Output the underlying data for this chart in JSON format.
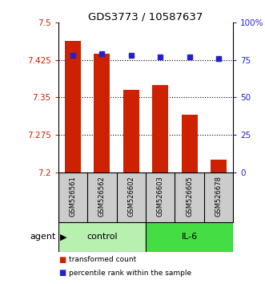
{
  "title": "GDS3773 / 10587637",
  "samples": [
    "GSM526561",
    "GSM526562",
    "GSM526602",
    "GSM526603",
    "GSM526605",
    "GSM526678"
  ],
  "red_values": [
    7.463,
    7.438,
    7.365,
    7.375,
    7.315,
    7.225
  ],
  "blue_values": [
    78,
    79,
    78,
    77,
    77,
    76
  ],
  "ylim_left": [
    7.2,
    7.5
  ],
  "ylim_right": [
    0,
    100
  ],
  "yticks_left": [
    7.2,
    7.275,
    7.35,
    7.425,
    7.5
  ],
  "yticks_right": [
    0,
    25,
    50,
    75,
    100
  ],
  "ytick_labels_left": [
    "7.2",
    "7.275",
    "7.35",
    "7.425",
    "7.5"
  ],
  "ytick_labels_right": [
    "0",
    "25",
    "50",
    "75",
    "100%"
  ],
  "groups": [
    {
      "label": "control",
      "start": 0,
      "end": 2,
      "color": "#b8f0b0"
    },
    {
      "label": "IL-6",
      "start": 3,
      "end": 5,
      "color": "#44dd44"
    }
  ],
  "agent_label": "agent",
  "bar_color": "#cc2200",
  "dot_color": "#2222cc",
  "bar_width": 0.55,
  "tick_color_left": "#cc2200",
  "tick_color_right": "#2222cc",
  "legend_red_label": "transformed count",
  "legend_blue_label": "percentile rank within the sample",
  "background_sample": "#cccccc"
}
